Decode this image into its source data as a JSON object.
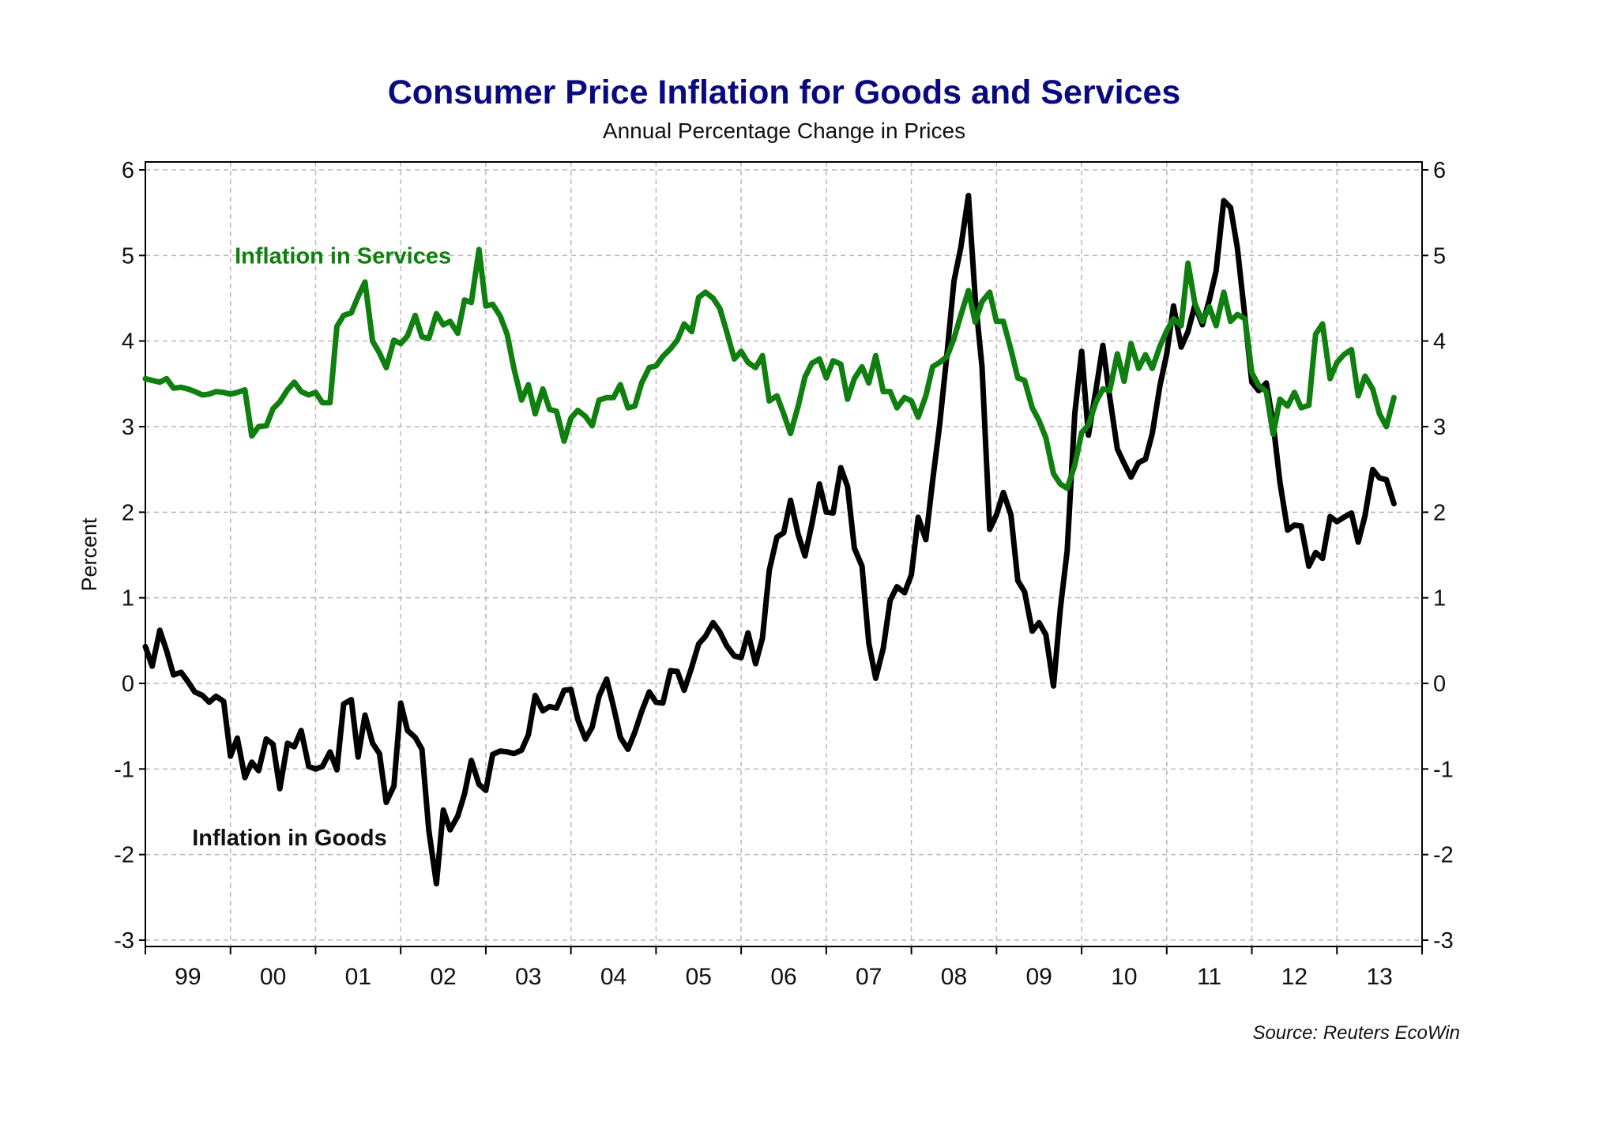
{
  "chart_data": {
    "type": "line",
    "title": "Consumer Price Inflation for Goods and Services",
    "subtitle": "Annual Percentage Change in Prices",
    "ylabel": "Percent",
    "ylim": [
      -3,
      6
    ],
    "yticks": [
      6,
      5,
      4,
      3,
      2,
      1,
      0,
      -1,
      -2,
      -3
    ],
    "xlim": [
      1999.0,
      2014.0
    ],
    "xtick_labels": [
      "99",
      "00",
      "01",
      "02",
      "03",
      "04",
      "05",
      "06",
      "07",
      "08",
      "09",
      "10",
      "11",
      "12",
      "13"
    ],
    "grid": true,
    "source": "Source: Reuters EcoWin",
    "series": [
      {
        "name": "Inflation in Services",
        "color": "#0f7f0f",
        "x": [
          1999.0,
          1999.08,
          1999.17,
          1999.25,
          1999.33,
          1999.42,
          1999.5,
          1999.58,
          1999.67,
          1999.75,
          1999.83,
          1999.92,
          2000.0,
          2000.08,
          2000.17,
          2000.25,
          2000.33,
          2000.42,
          2000.5,
          2000.58,
          2000.67,
          2000.75,
          2000.83,
          2000.92,
          2001.0,
          2001.08,
          2001.17,
          2001.25,
          2001.33,
          2001.42,
          2001.5,
          2001.58,
          2001.67,
          2001.75,
          2001.83,
          2001.92,
          2002.0,
          2002.08,
          2002.17,
          2002.25,
          2002.33,
          2002.42,
          2002.5,
          2002.58,
          2002.67,
          2002.75,
          2002.83,
          2002.92,
          2003.0,
          2003.08,
          2003.17,
          2003.25,
          2003.33,
          2003.42,
          2003.5,
          2003.58,
          2003.67,
          2003.75,
          2003.83,
          2003.92,
          2004.0,
          2004.08,
          2004.17,
          2004.25,
          2004.33,
          2004.42,
          2004.5,
          2004.58,
          2004.67,
          2004.75,
          2004.83,
          2004.92,
          2005.0,
          2005.08,
          2005.17,
          2005.25,
          2005.33,
          2005.42,
          2005.5,
          2005.58,
          2005.67,
          2005.75,
          2005.83,
          2005.92,
          2006.0,
          2006.08,
          2006.17,
          2006.25,
          2006.33,
          2006.42,
          2006.5,
          2006.58,
          2006.67,
          2006.75,
          2006.83,
          2006.92,
          2007.0,
          2007.08,
          2007.17,
          2007.25,
          2007.33,
          2007.42,
          2007.5,
          2007.58,
          2007.67,
          2007.75,
          2007.83,
          2007.92,
          2008.0,
          2008.08,
          2008.17,
          2008.25,
          2008.33,
          2008.42,
          2008.5,
          2008.58,
          2008.67,
          2008.75,
          2008.83,
          2008.92,
          2009.0,
          2009.08,
          2009.17,
          2009.25,
          2009.33,
          2009.42,
          2009.5,
          2009.58,
          2009.67,
          2009.75,
          2009.83,
          2009.92,
          2010.0,
          2010.08,
          2010.17,
          2010.25,
          2010.33,
          2010.42,
          2010.5,
          2010.58,
          2010.67,
          2010.75,
          2010.83,
          2010.92,
          2011.0,
          2011.08,
          2011.17,
          2011.25,
          2011.33,
          2011.42,
          2011.5,
          2011.58,
          2011.67,
          2011.75,
          2011.83,
          2011.92,
          2012.0,
          2012.08,
          2012.17,
          2012.25,
          2012.33,
          2012.42,
          2012.5,
          2012.58,
          2012.67,
          2012.75,
          2012.83,
          2012.92,
          2013.0,
          2013.08,
          2013.17,
          2013.25,
          2013.33,
          2013.42,
          2013.5,
          2013.58,
          2013.67
        ],
        "values": [
          3.56,
          3.54,
          3.52,
          3.56,
          3.45,
          3.46,
          3.44,
          3.41,
          3.37,
          3.38,
          3.41,
          3.4,
          3.38,
          3.4,
          3.43,
          2.89,
          3.0,
          3.01,
          3.21,
          3.29,
          3.43,
          3.52,
          3.41,
          3.37,
          3.4,
          3.28,
          3.28,
          4.17,
          4.3,
          4.33,
          4.52,
          4.69,
          4.0,
          3.86,
          3.69,
          4.01,
          3.97,
          4.06,
          4.3,
          4.05,
          4.03,
          4.32,
          4.19,
          4.23,
          4.09,
          4.48,
          4.45,
          5.07,
          4.41,
          4.43,
          4.29,
          4.08,
          3.68,
          3.31,
          3.49,
          3.15,
          3.44,
          3.2,
          3.18,
          2.83,
          3.1,
          3.19,
          3.12,
          3.01,
          3.31,
          3.34,
          3.34,
          3.49,
          3.22,
          3.24,
          3.51,
          3.69,
          3.71,
          3.82,
          3.91,
          4.01,
          4.2,
          4.11,
          4.51,
          4.57,
          4.5,
          4.38,
          4.11,
          3.79,
          3.88,
          3.75,
          3.69,
          3.83,
          3.3,
          3.36,
          3.15,
          2.92,
          3.24,
          3.58,
          3.74,
          3.79,
          3.57,
          3.77,
          3.73,
          3.32,
          3.56,
          3.7,
          3.51,
          3.83,
          3.41,
          3.41,
          3.22,
          3.34,
          3.3,
          3.11,
          3.36,
          3.7,
          3.75,
          3.82,
          4.03,
          4.3,
          4.59,
          4.22,
          4.46,
          4.57,
          4.23,
          4.23,
          3.9,
          3.57,
          3.54,
          3.22,
          3.07,
          2.87,
          2.45,
          2.33,
          2.28,
          2.55,
          2.93,
          3.02,
          3.29,
          3.44,
          3.42,
          3.85,
          3.53,
          3.97,
          3.68,
          3.84,
          3.68,
          3.94,
          4.12,
          4.26,
          4.18,
          4.91,
          4.44,
          4.23,
          4.4,
          4.18,
          4.57,
          4.23,
          4.31,
          4.26,
          3.63,
          3.48,
          3.41,
          2.91,
          3.32,
          3.24,
          3.4,
          3.22,
          3.25,
          4.08,
          4.2,
          3.56,
          3.75,
          3.84,
          3.9,
          3.36,
          3.59,
          3.44,
          3.15,
          3.0,
          3.34
        ]
      },
      {
        "name": "Inflation in Goods",
        "color": "#000000",
        "x": [
          1999.0,
          1999.08,
          1999.17,
          1999.25,
          1999.33,
          1999.42,
          1999.5,
          1999.58,
          1999.67,
          1999.75,
          1999.83,
          1999.92,
          2000.0,
          2000.08,
          2000.17,
          2000.25,
          2000.33,
          2000.42,
          2000.5,
          2000.58,
          2000.67,
          2000.75,
          2000.83,
          2000.92,
          2001.0,
          2001.08,
          2001.17,
          2001.25,
          2001.33,
          2001.42,
          2001.5,
          2001.58,
          2001.67,
          2001.75,
          2001.83,
          2001.92,
          2002.0,
          2002.08,
          2002.17,
          2002.25,
          2002.33,
          2002.42,
          2002.5,
          2002.58,
          2002.67,
          2002.75,
          2002.83,
          2002.92,
          2003.0,
          2003.08,
          2003.17,
          2003.25,
          2003.33,
          2003.42,
          2003.5,
          2003.58,
          2003.67,
          2003.75,
          2003.83,
          2003.92,
          2004.0,
          2004.08,
          2004.17,
          2004.25,
          2004.33,
          2004.42,
          2004.5,
          2004.58,
          2004.67,
          2004.75,
          2004.83,
          2004.92,
          2005.0,
          2005.08,
          2005.17,
          2005.25,
          2005.33,
          2005.42,
          2005.5,
          2005.58,
          2005.67,
          2005.75,
          2005.83,
          2005.92,
          2006.0,
          2006.08,
          2006.17,
          2006.25,
          2006.33,
          2006.42,
          2006.5,
          2006.58,
          2006.67,
          2006.75,
          2006.83,
          2006.92,
          2007.0,
          2007.08,
          2007.17,
          2007.25,
          2007.33,
          2007.42,
          2007.5,
          2007.58,
          2007.67,
          2007.75,
          2007.83,
          2007.92,
          2008.0,
          2008.08,
          2008.17,
          2008.25,
          2008.33,
          2008.42,
          2008.5,
          2008.58,
          2008.67,
          2008.75,
          2008.83,
          2008.92,
          2009.0,
          2009.08,
          2009.17,
          2009.25,
          2009.33,
          2009.42,
          2009.5,
          2009.58,
          2009.67,
          2009.75,
          2009.83,
          2009.92,
          2010.0,
          2010.08,
          2010.17,
          2010.25,
          2010.33,
          2010.42,
          2010.5,
          2010.58,
          2010.67,
          2010.75,
          2010.83,
          2010.92,
          2011.0,
          2011.08,
          2011.17,
          2011.25,
          2011.33,
          2011.42,
          2011.5,
          2011.58,
          2011.67,
          2011.75,
          2011.83,
          2011.92,
          2012.0,
          2012.08,
          2012.17,
          2012.25,
          2012.33,
          2012.42,
          2012.5,
          2012.58,
          2012.67,
          2012.75,
          2012.83,
          2012.92,
          2013.0,
          2013.08,
          2013.17,
          2013.25,
          2013.33,
          2013.42,
          2013.5,
          2013.58,
          2013.67
        ],
        "values": [
          0.43,
          0.2,
          0.62,
          0.38,
          0.1,
          0.13,
          0.02,
          -0.1,
          -0.14,
          -0.22,
          -0.15,
          -0.21,
          -0.85,
          -0.64,
          -1.1,
          -0.92,
          -1.02,
          -0.65,
          -0.71,
          -1.23,
          -0.7,
          -0.74,
          -0.55,
          -0.97,
          -1.0,
          -0.97,
          -0.8,
          -1.01,
          -0.24,
          -0.19,
          -0.86,
          -0.37,
          -0.7,
          -0.82,
          -1.39,
          -1.2,
          -0.23,
          -0.55,
          -0.63,
          -0.77,
          -1.72,
          -2.34,
          -1.48,
          -1.71,
          -1.55,
          -1.29,
          -0.9,
          -1.18,
          -1.25,
          -0.83,
          -0.79,
          -0.8,
          -0.82,
          -0.78,
          -0.6,
          -0.14,
          -0.32,
          -0.27,
          -0.29,
          -0.08,
          -0.07,
          -0.42,
          -0.65,
          -0.51,
          -0.15,
          0.05,
          -0.27,
          -0.63,
          -0.77,
          -0.57,
          -0.33,
          -0.1,
          -0.22,
          -0.23,
          0.15,
          0.14,
          -0.08,
          0.19,
          0.46,
          0.55,
          0.71,
          0.6,
          0.44,
          0.32,
          0.3,
          0.59,
          0.23,
          0.53,
          1.32,
          1.71,
          1.76,
          2.14,
          1.74,
          1.49,
          1.86,
          2.33,
          2.0,
          1.99,
          2.52,
          2.3,
          1.58,
          1.37,
          0.47,
          0.06,
          0.41,
          0.97,
          1.13,
          1.06,
          1.27,
          1.94,
          1.68,
          2.37,
          3.01,
          3.86,
          4.7,
          5.09,
          5.7,
          4.5,
          3.7,
          1.8,
          1.97,
          2.23,
          1.97,
          1.2,
          1.07,
          0.61,
          0.71,
          0.57,
          -0.03,
          0.87,
          1.55,
          3.15,
          3.88,
          2.9,
          3.44,
          3.95,
          3.35,
          2.74,
          2.57,
          2.41,
          2.58,
          2.62,
          2.92,
          3.48,
          3.85,
          4.41,
          3.93,
          4.11,
          4.42,
          4.19,
          4.48,
          4.82,
          5.64,
          5.56,
          5.09,
          4.27,
          3.52,
          3.42,
          3.51,
          3.04,
          2.35,
          1.79,
          1.85,
          1.84,
          1.37,
          1.53,
          1.46,
          1.95,
          1.89,
          1.94,
          1.99,
          1.65,
          1.96,
          2.5,
          2.4,
          2.38,
          2.1
        ]
      }
    ],
    "annotations": [
      {
        "text": "Inflation in Services",
        "x": 2000.05,
        "y": 5.0,
        "color": "#0f7f0f"
      },
      {
        "text": "Inflation in Goods",
        "x": 1999.55,
        "y": -1.8,
        "color": "#111111"
      }
    ]
  }
}
